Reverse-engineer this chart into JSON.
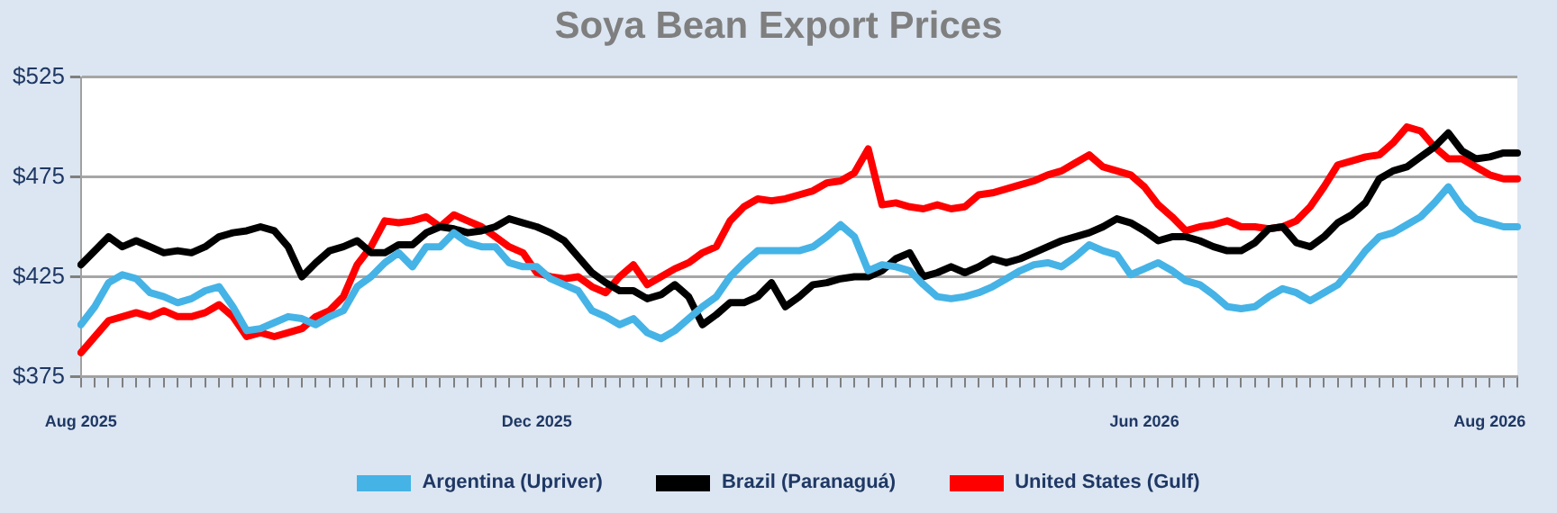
{
  "chart_data": {
    "type": "line",
    "title": "Soya Bean Export Prices",
    "categories": [
      "Aug 2025",
      null,
      null,
      null,
      null,
      null,
      null,
      null,
      null,
      null,
      null,
      null,
      null,
      null,
      null,
      null,
      null,
      null,
      null,
      null,
      null,
      null,
      null,
      null,
      null,
      null,
      null,
      null,
      null,
      null,
      null,
      null,
      null,
      "Dec 2025",
      null,
      null,
      null,
      null,
      null,
      null,
      null,
      null,
      null,
      null,
      null,
      null,
      null,
      null,
      null,
      null,
      null,
      null,
      null,
      null,
      null,
      null,
      null,
      null,
      null,
      null,
      null,
      null,
      null,
      null,
      null,
      null,
      null,
      null,
      null,
      null,
      null,
      null,
      null,
      null,
      null,
      null,
      null,
      "Jun 2026",
      null,
      null,
      null,
      null,
      null,
      null,
      null,
      null,
      null,
      null,
      null,
      null,
      null,
      null,
      null,
      null,
      null,
      null,
      null,
      null,
      null,
      null,
      null,
      null,
      "Aug 2026",
      null,
      null
    ],
    "series": [
      {
        "name": "Argentina (Upriver)",
        "color": "#45b3e6",
        "values": [
          401,
          410,
          422,
          426,
          424,
          417,
          415,
          412,
          414,
          418,
          420,
          410,
          398,
          399,
          402,
          405,
          404,
          401,
          405,
          408,
          420,
          425,
          432,
          437,
          430,
          440,
          440,
          447,
          442,
          440,
          440,
          432,
          430,
          430,
          424,
          421,
          418,
          408,
          405,
          401,
          404,
          397,
          394,
          398,
          404,
          410,
          415,
          425,
          432,
          438,
          438,
          438,
          438,
          440,
          445,
          451,
          445,
          428,
          431,
          430,
          428,
          421,
          415,
          414,
          415,
          417,
          420,
          424,
          428,
          431,
          432,
          430,
          435,
          441,
          438,
          436,
          426,
          429,
          432,
          428,
          423,
          421,
          416,
          410,
          409,
          410,
          415,
          419,
          417,
          413,
          417,
          421,
          429,
          438,
          445,
          447,
          451,
          455,
          462,
          470,
          460,
          454,
          452,
          450,
          450
        ]
      },
      {
        "name": "Brazil (Paranaguá)",
        "color": "#000000",
        "values": [
          431,
          438,
          445,
          440,
          443,
          440,
          437,
          438,
          437,
          440,
          445,
          447,
          448,
          450,
          448,
          440,
          425,
          432,
          438,
          440,
          443,
          437,
          437,
          441,
          441,
          447,
          450,
          449,
          447,
          448,
          450,
          454,
          452,
          450,
          447,
          443,
          435,
          427,
          422,
          418,
          418,
          414,
          416,
          421,
          415,
          401,
          406,
          412,
          412,
          415,
          422,
          410,
          415,
          421,
          422,
          424,
          425,
          425,
          428,
          434,
          437,
          425,
          427,
          430,
          427,
          430,
          434,
          432,
          434,
          437,
          440,
          443,
          445,
          447,
          450,
          454,
          452,
          448,
          443,
          445,
          445,
          443,
          440,
          438,
          438,
          442,
          449,
          450,
          442,
          440,
          445,
          452,
          456,
          462,
          474,
          478,
          480,
          485,
          490,
          497,
          488,
          484,
          485,
          487,
          487
        ]
      },
      {
        "name": "United States (Gulf)",
        "color": "#ff0000",
        "values": [
          387,
          395,
          403,
          405,
          407,
          405,
          408,
          405,
          405,
          407,
          411,
          405,
          395,
          397,
          395,
          397,
          399,
          405,
          408,
          415,
          431,
          440,
          453,
          452,
          453,
          455,
          450,
          456,
          453,
          450,
          445,
          440,
          437,
          427,
          425,
          424,
          425,
          420,
          417,
          425,
          431,
          421,
          425,
          429,
          432,
          437,
          440,
          453,
          460,
          464,
          463,
          464,
          466,
          468,
          472,
          473,
          477,
          489,
          461,
          462,
          460,
          459,
          461,
          459,
          460,
          466,
          467,
          469,
          471,
          473,
          476,
          478,
          482,
          486,
          480,
          478,
          476,
          470,
          461,
          455,
          448,
          450,
          451,
          453,
          450,
          450,
          449,
          450,
          453,
          460,
          470,
          481,
          483,
          485,
          486,
          492,
          500,
          498,
          490,
          484,
          484,
          480,
          476,
          474,
          474
        ]
      }
    ],
    "ylim": [
      375,
      525
    ],
    "yticks": [
      {
        "value": 375,
        "label": "$375"
      },
      {
        "value": 425,
        "label": "$425"
      },
      {
        "value": 475,
        "label": "$475"
      },
      {
        "value": 525,
        "label": "$525"
      }
    ],
    "grid": "y",
    "legend": "bottom",
    "marker": "none",
    "line_style": "solid"
  }
}
